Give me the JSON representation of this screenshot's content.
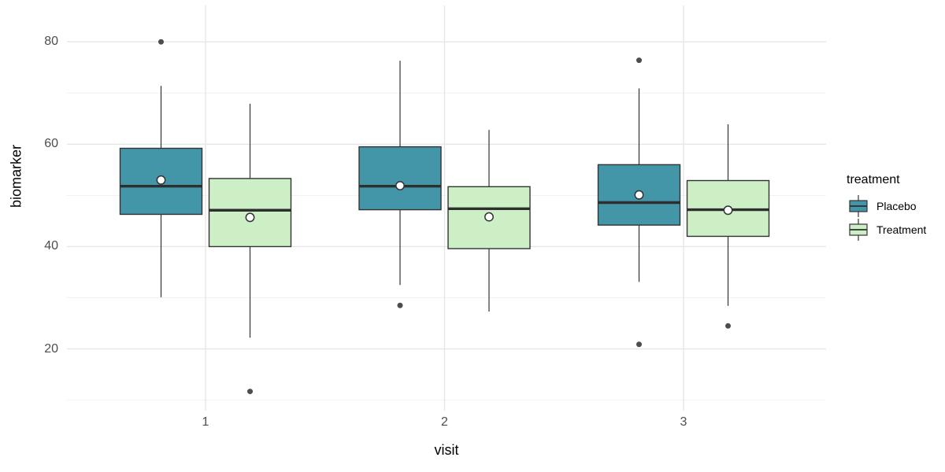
{
  "chart_data": {
    "type": "boxplot",
    "title": "",
    "xlabel": "visit",
    "ylabel": "biomarker",
    "categories": [
      "1",
      "2",
      "3"
    ],
    "y_axis": {
      "major_ticks": [
        20,
        40,
        60,
        80
      ],
      "minor_gridlines": [
        10,
        30,
        50,
        70
      ],
      "range": [
        8.1,
        87.1
      ],
      "grid": "on"
    },
    "legend": {
      "title": "treatment",
      "position": "right"
    },
    "series": [
      {
        "name": "Placebo",
        "fill": "#4396A8",
        "stats": [
          {
            "visit": "1",
            "whisker_low": 30.1,
            "q1": 46.3,
            "median": 51.8,
            "mean": 53.0,
            "q3": 59.2,
            "whisker_high": 71.4,
            "outliers": [
              80.0
            ]
          },
          {
            "visit": "2",
            "whisker_low": 32.5,
            "q1": 47.2,
            "median": 51.8,
            "mean": 51.9,
            "q3": 59.5,
            "whisker_high": 76.3,
            "outliers": [
              28.5
            ]
          },
          {
            "visit": "3",
            "whisker_low": 33.1,
            "q1": 44.2,
            "median": 48.6,
            "mean": 50.1,
            "q3": 56.0,
            "whisker_high": 70.9,
            "outliers": [
              76.4,
              20.9
            ]
          }
        ]
      },
      {
        "name": "Treatment",
        "fill": "#CCEFC6",
        "stats": [
          {
            "visit": "1",
            "whisker_low": 22.2,
            "q1": 40.0,
            "median": 47.1,
            "mean": 45.7,
            "q3": 53.3,
            "whisker_high": 67.9,
            "outliers": [
              11.7
            ]
          },
          {
            "visit": "2",
            "whisker_low": 27.3,
            "q1": 39.6,
            "median": 47.4,
            "mean": 45.8,
            "q3": 51.7,
            "whisker_high": 62.8,
            "outliers": []
          },
          {
            "visit": "3",
            "whisker_low": 28.4,
            "q1": 42.0,
            "median": 47.2,
            "mean": 47.1,
            "q3": 52.9,
            "whisker_high": 63.9,
            "outliers": [
              24.5
            ]
          }
        ]
      }
    ],
    "colors": {
      "background": "#FFFFFF",
      "grid_major": "#E6E6E6",
      "grid_minor": "#F1F1F1",
      "box_border": "#333333",
      "median_line": "#2E2E2E",
      "whisker": "#333333",
      "outlier_point": "#4D4D4D",
      "mean_fill": "#FFFFFF",
      "mean_border": "#333333",
      "axis_tick_text": "#4D4D4D",
      "axis_title_text": "#000000"
    }
  }
}
